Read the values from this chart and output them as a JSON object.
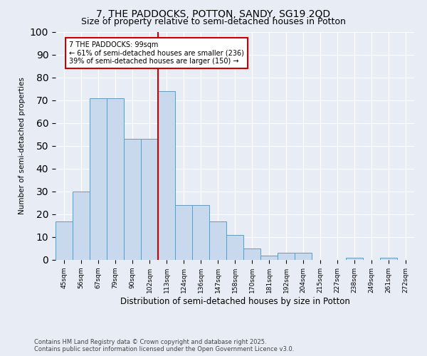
{
  "title": "7, THE PADDOCKS, POTTON, SANDY, SG19 2QD",
  "subtitle": "Size of property relative to semi-detached houses in Potton",
  "xlabel": "Distribution of semi-detached houses by size in Potton",
  "ylabel": "Number of semi-detached properties",
  "categories": [
    "45sqm",
    "56sqm",
    "67sqm",
    "79sqm",
    "90sqm",
    "102sqm",
    "113sqm",
    "124sqm",
    "136sqm",
    "147sqm",
    "158sqm",
    "170sqm",
    "181sqm",
    "192sqm",
    "204sqm",
    "215sqm",
    "227sqm",
    "238sqm",
    "249sqm",
    "261sqm",
    "272sqm"
  ],
  "values": [
    17,
    30,
    71,
    71,
    53,
    53,
    74,
    24,
    24,
    17,
    11,
    5,
    2,
    3,
    3,
    0,
    0,
    1,
    0,
    1,
    0
  ],
  "bar_color": "#c8d9ed",
  "bar_edge_color": "#6699bb",
  "vline_x": 5.5,
  "vline_color": "#cc0000",
  "annotation_title": "7 THE PADDOCKS: 99sqm",
  "annotation_line1": "← 61% of semi-detached houses are smaller (236)",
  "annotation_line2": "39% of semi-detached houses are larger (150) →",
  "annotation_box_color": "#cc0000",
  "ylim": [
    0,
    100
  ],
  "background_color": "#e8edf5",
  "plot_bg_color": "#e8edf5",
  "footer_line1": "Contains HM Land Registry data © Crown copyright and database right 2025.",
  "footer_line2": "Contains public sector information licensed under the Open Government Licence v3.0.",
  "title_fontsize": 10,
  "subtitle_fontsize": 9
}
